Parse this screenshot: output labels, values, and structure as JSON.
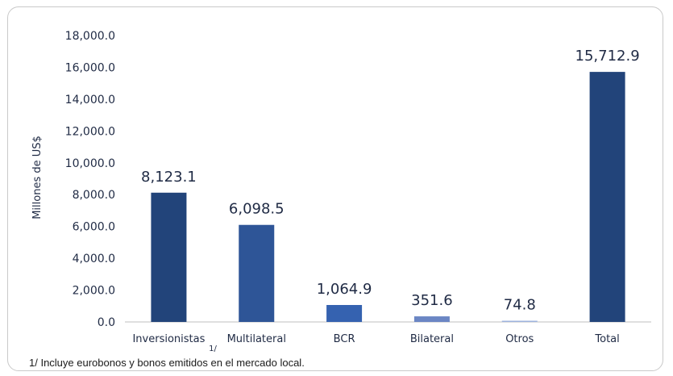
{
  "colors": {
    "axis": "#bfbfbf",
    "text": "#1f2a44"
  },
  "footnote": "1/ Incluye eurobonos y bonos emitidos en el mercado local.",
  "footnote_marker": "1/",
  "chart_data": {
    "type": "bar",
    "ylabel": "Millones de US$",
    "xlabel": "",
    "ylim": [
      0,
      18000
    ],
    "ytick_step": 2000,
    "ytick_labels": [
      "0.0",
      "2,000.0",
      "4,000.0",
      "6,000.0",
      "8,000.0",
      "10,000.0",
      "12,000.0",
      "14,000.0",
      "16,000.0",
      "18,000.0"
    ],
    "grid": false,
    "categories": [
      "Inversionistas",
      "Multilateral",
      "BCR",
      "Bilateral",
      "Otros",
      "Total"
    ],
    "values": [
      8123.1,
      6098.5,
      1064.9,
      351.6,
      74.8,
      15712.9
    ],
    "data_labels": [
      "8,123.1",
      "6,098.5",
      "1,064.9",
      "351.6",
      "74.8",
      "15,712.9"
    ],
    "bar_colors": [
      "#22447a",
      "#2e5597",
      "#3562b0",
      "#6b86c4",
      "#9db3de",
      "#22447a"
    ]
  }
}
